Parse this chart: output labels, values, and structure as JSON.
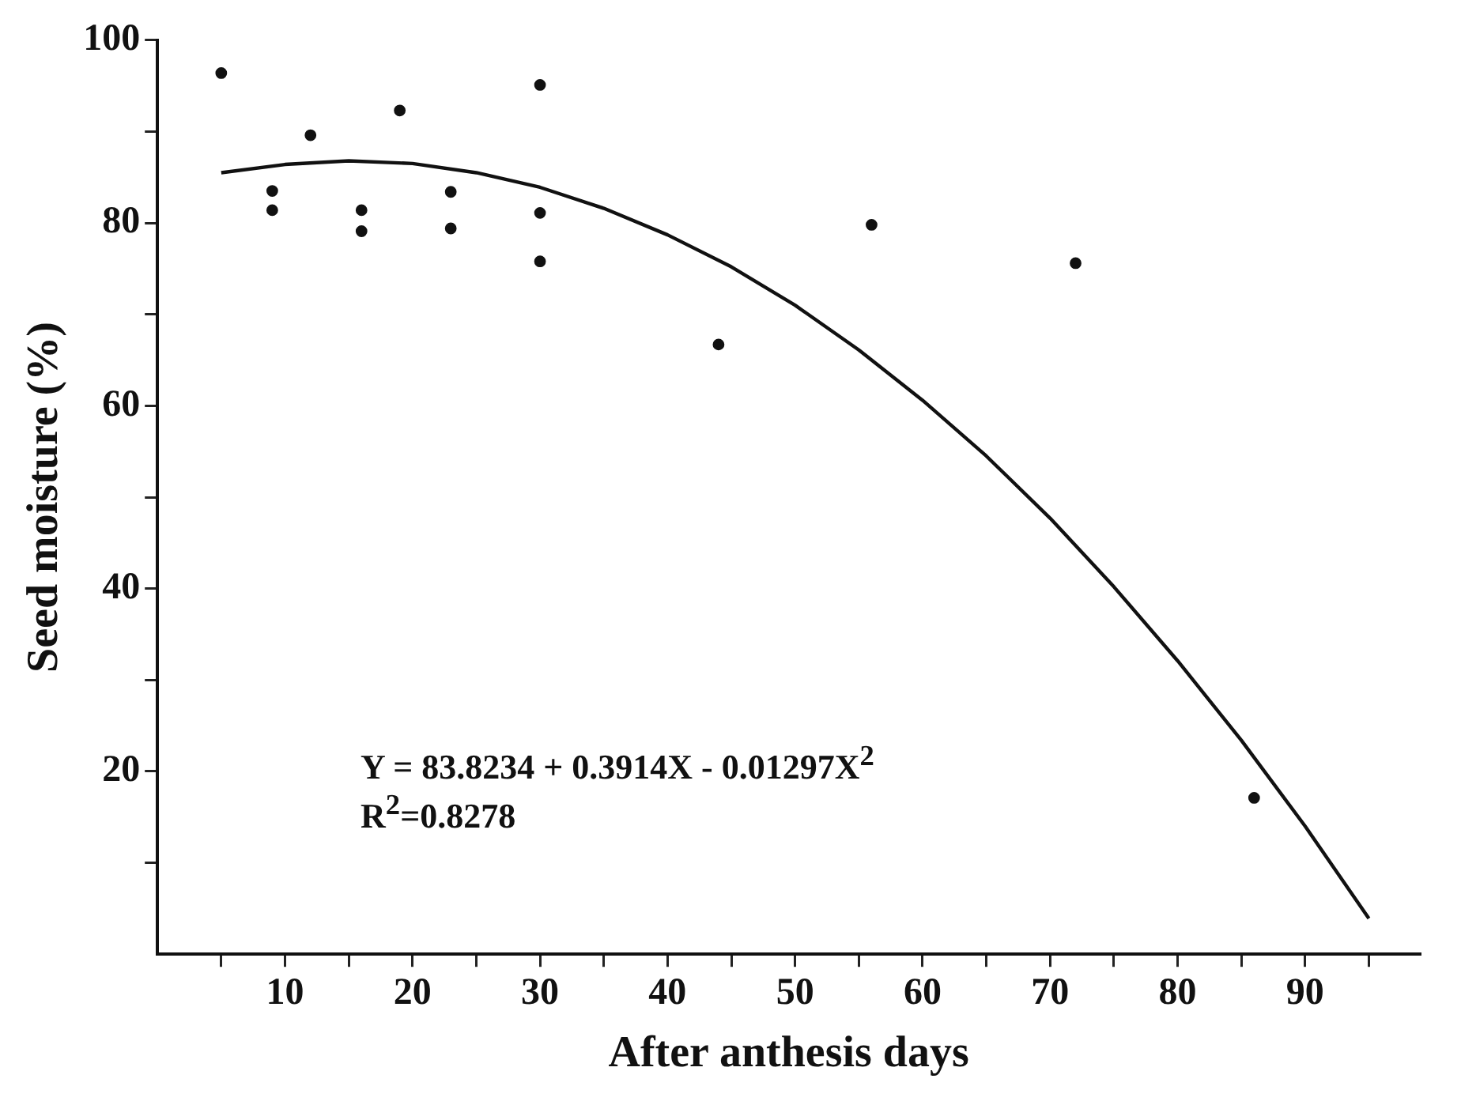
{
  "chart_data": {
    "type": "scatter",
    "xlabel": "After anthesis days",
    "ylabel": "Seed moisture (%)",
    "xlim": [
      0,
      99
    ],
    "ylim": [
      0,
      100
    ],
    "xticks": [
      {
        "value": 5,
        "label": null
      },
      10,
      {
        "value": 15,
        "label": null
      },
      20,
      {
        "value": 25,
        "label": null
      },
      30,
      {
        "value": 35,
        "label": null
      },
      40,
      {
        "value": 45,
        "label": null
      },
      50,
      {
        "value": 55,
        "label": null
      },
      60,
      {
        "value": 65,
        "label": null
      },
      70,
      {
        "value": 75,
        "label": null
      },
      80,
      {
        "value": 85,
        "label": null
      },
      90,
      {
        "value": 95,
        "label": null
      }
    ],
    "yticks": [
      {
        "value": 10,
        "label": null
      },
      20,
      {
        "value": 30,
        "label": null
      },
      40,
      {
        "value": 50,
        "label": null
      },
      60,
      {
        "value": 70,
        "label": null
      },
      80,
      {
        "value": 90,
        "label": null
      },
      100
    ],
    "grid": false,
    "legend": false,
    "marker": "circle",
    "annotations": [
      "Y = 83.8234 + 0.3914X - 0.01297X$^{2}$",
      "R$^{2}$=0.8278"
    ],
    "series": [
      {
        "type": "scatter",
        "color": "#111111",
        "x": [
          5,
          9,
          9,
          12,
          16,
          16,
          19,
          23,
          23,
          30,
          30,
          30,
          44,
          56,
          72,
          86
        ],
        "values": [
          96.4,
          83.5,
          81.4,
          89.6,
          81.4,
          79.1,
          92.3,
          83.4,
          79.4,
          95.1,
          81.1,
          75.8,
          66.7,
          79.8,
          75.6,
          17.1
        ]
      },
      {
        "type": "line",
        "color": "#111111",
        "marker": "none",
        "line_style": "solid",
        "x": [
          5,
          10,
          15,
          20,
          25,
          30,
          35,
          40,
          45,
          50,
          55,
          60,
          65,
          70,
          75,
          80,
          85,
          90,
          95
        ],
        "values": [
          85.5,
          86.4,
          86.8,
          86.5,
          85.5,
          83.9,
          81.6,
          78.7,
          75.2,
          71.0,
          66.1,
          60.6,
          54.5,
          47.7,
          40.2,
          32.1,
          23.4,
          14.0,
          3.9
        ]
      }
    ]
  }
}
